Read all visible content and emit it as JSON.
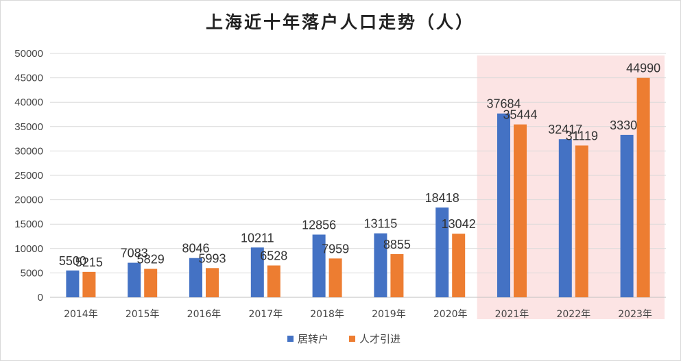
{
  "chart_data": {
    "type": "bar",
    "title": "上海近十年落户人口走势（人）",
    "categories": [
      "2014年",
      "2015年",
      "2016年",
      "2017年",
      "2018年",
      "2019年",
      "2020年",
      "2021年",
      "2022年",
      "2023年"
    ],
    "series": [
      {
        "name": "居转户",
        "color": "#4472C4",
        "values": [
          5500,
          7083,
          8046,
          10211,
          12856,
          13115,
          18418,
          37684,
          32417,
          33300
        ]
      },
      {
        "name": "人才引进",
        "color": "#ED7D31",
        "values": [
          5215,
          5829,
          5993,
          6528,
          7959,
          8855,
          13042,
          35444,
          31119,
          44990
        ]
      }
    ],
    "ylim": [
      0,
      50000
    ],
    "yticks": [
      0,
      5000,
      10000,
      15000,
      20000,
      25000,
      30000,
      35000,
      40000,
      45000,
      50000
    ],
    "xlabel": "",
    "ylabel": "",
    "grid": true,
    "legend_position": "bottom",
    "highlight": {
      "categories": [
        "2021年",
        "2022年",
        "2023年"
      ],
      "color": "#FCE4E4"
    }
  }
}
